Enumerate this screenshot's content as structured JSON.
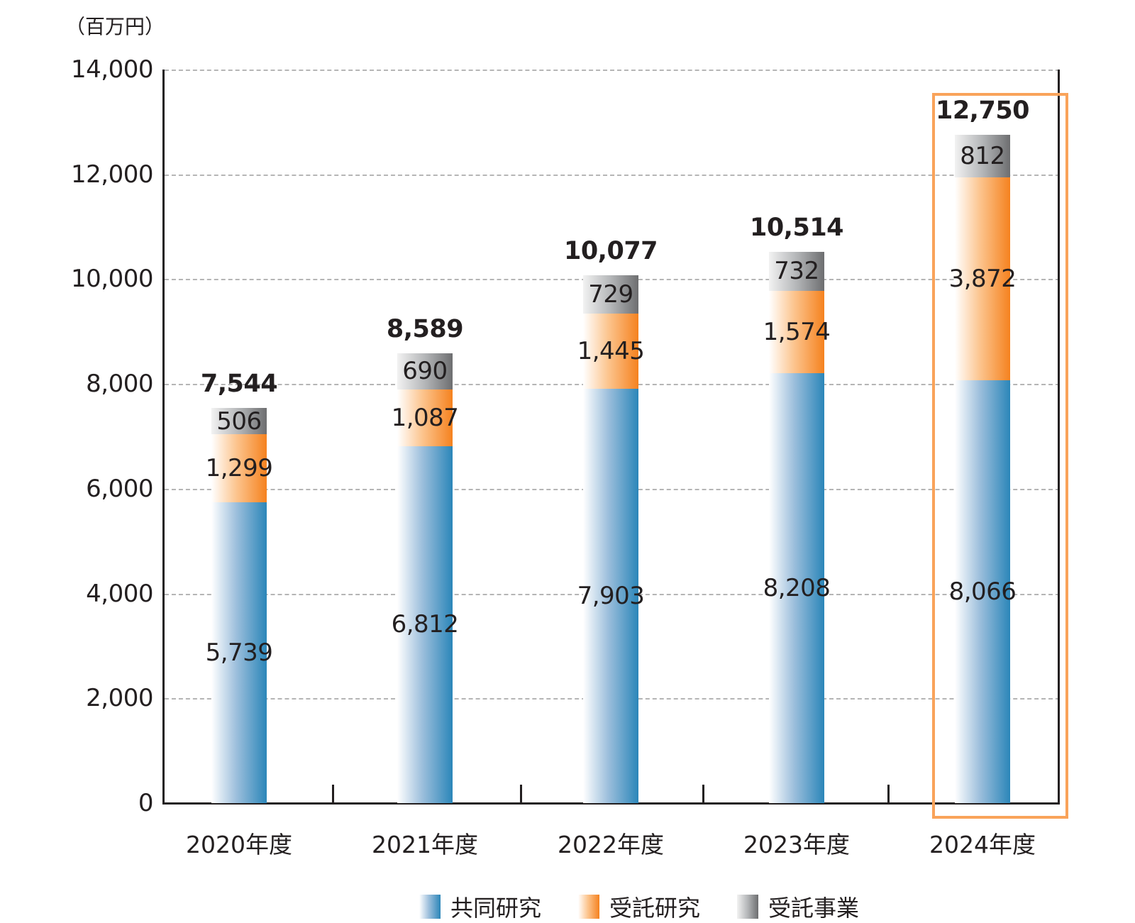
{
  "chart": {
    "unit_label": "（百万円）",
    "y_ticks": [
      "14,000",
      "12,000",
      "10,000",
      "8,000",
      "6,000",
      "4,000",
      "2,000",
      "0"
    ],
    "categories": [
      "2020年度",
      "2021年度",
      "2022年度",
      "2023年度",
      "2024年度"
    ],
    "legend": [
      "共同研究",
      "受託研究",
      "受託事業"
    ],
    "bars": [
      {
        "year": "2020年度",
        "joint": "5,739",
        "contract_research": "1,299",
        "contract_project": "506",
        "total": "7,544"
      },
      {
        "year": "2021年度",
        "joint": "6,812",
        "contract_research": "1,087",
        "contract_project": "690",
        "total": "8,589"
      },
      {
        "year": "2022年度",
        "joint": "7,903",
        "contract_research": "1,445",
        "contract_project": "729",
        "total": "10,077"
      },
      {
        "year": "2023年度",
        "joint": "8,208",
        "contract_research": "1,574",
        "contract_project": "732",
        "total": "10,514"
      },
      {
        "year": "2024年度",
        "joint": "8,066",
        "contract_research": "3,872",
        "contract_project": "812",
        "total": "12,750"
      }
    ],
    "colors": {
      "joint": "#2b86b9",
      "contract_research": "#f5821f",
      "contract_project": "#6d6e70",
      "highlight": "#f9a35a"
    },
    "highlighted_category": "2024年度"
  },
  "chart_data": {
    "type": "bar",
    "stacked": true,
    "title": "",
    "xlabel": "",
    "ylabel": "（百万円）",
    "ylim": [
      0,
      14000
    ],
    "yticks": [
      0,
      2000,
      4000,
      6000,
      8000,
      10000,
      12000,
      14000
    ],
    "grid": true,
    "legend_position": "bottom",
    "categories": [
      "2020年度",
      "2021年度",
      "2022年度",
      "2023年度",
      "2024年度"
    ],
    "series": [
      {
        "name": "共同研究",
        "values": [
          5739,
          6812,
          7903,
          8208,
          8066
        ]
      },
      {
        "name": "受託研究",
        "values": [
          1299,
          1087,
          1445,
          1574,
          3872
        ]
      },
      {
        "name": "受託事業",
        "values": [
          506,
          690,
          729,
          732,
          812
        ]
      }
    ],
    "totals": [
      7544,
      8589,
      10077,
      10514,
      12750
    ],
    "annotations": [
      "2024年度 highlighted with orange box"
    ]
  }
}
